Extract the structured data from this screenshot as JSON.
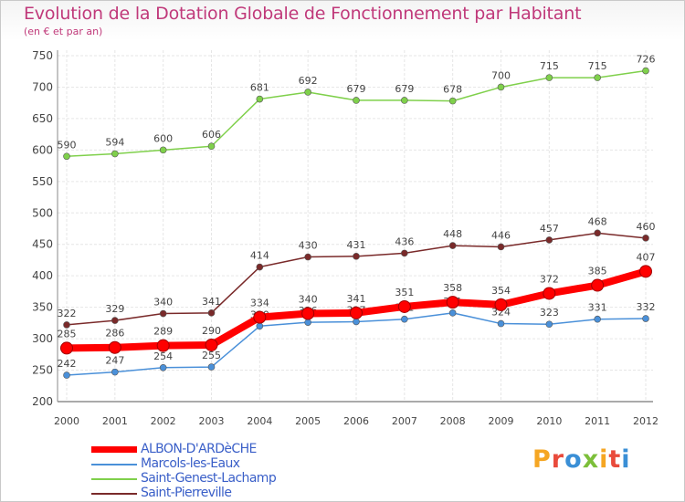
{
  "header": {
    "title": "Evolution de la Dotation Globale de Fonctionnement par Habitant",
    "subtitle": "(en € et par an)"
  },
  "logo": {
    "text": "Proxiti",
    "colors": [
      "#f5a623",
      "#e94b3c",
      "#3a8fd6",
      "#7cbf3a",
      "#f5a623",
      "#e94b3c",
      "#3a8fd6"
    ]
  },
  "chart_data": {
    "type": "line",
    "title": "Evolution de la Dotation Globale de Fonctionnement par Habitant",
    "subtitle": "(en € et par an)",
    "x": [
      "2000",
      "2001",
      "2002",
      "2003",
      "2004",
      "2005",
      "2006",
      "2007",
      "2008",
      "2009",
      "2010",
      "2011",
      "2012"
    ],
    "ylim": [
      200,
      750
    ],
    "yticks": [
      200,
      250,
      300,
      350,
      400,
      450,
      500,
      550,
      600,
      650,
      700,
      750
    ],
    "grid": true,
    "legend_position": "bottom-left",
    "series": [
      {
        "name": "ALBON-D'ARDèCHE",
        "color": "#ff0000",
        "emphasis": true,
        "values": [
          285,
          286,
          289,
          290,
          334,
          340,
          341,
          351,
          358,
          354,
          372,
          385,
          407
        ],
        "labels": [
          "285",
          "286",
          "289",
          "290",
          "334",
          "340",
          "341",
          "351",
          "358",
          "354",
          "372",
          "385",
          "407"
        ]
      },
      {
        "name": "Marcols-les-Eaux",
        "color": "#4a90d9",
        "values": [
          242,
          247,
          254,
          255,
          320,
          326,
          327,
          331,
          341,
          324,
          323,
          331,
          332
        ],
        "labels": [
          "242",
          "247",
          "254",
          "255",
          "320",
          "326",
          "327",
          "331",
          "341",
          "324",
          "323",
          "331",
          "332"
        ]
      },
      {
        "name": "Saint-Genest-Lachamp",
        "color": "#7fd04b",
        "values": [
          590,
          594,
          600,
          606,
          681,
          692,
          679,
          679,
          678,
          700,
          715,
          715,
          726
        ],
        "labels": [
          "590",
          "594",
          "600",
          "606",
          "681",
          "692",
          "679",
          "679",
          "678",
          "700",
          "715",
          "715",
          "726"
        ]
      },
      {
        "name": "Saint-Pierreville",
        "color": "#7a2a2a",
        "values": [
          322,
          329,
          340,
          341,
          414,
          430,
          431,
          436,
          448,
          446,
          457,
          468,
          460
        ],
        "labels": [
          "322",
          "329",
          "340",
          "341",
          "414",
          "430",
          "431",
          "436",
          "448",
          "446",
          "457",
          "468",
          "460"
        ]
      }
    ]
  }
}
